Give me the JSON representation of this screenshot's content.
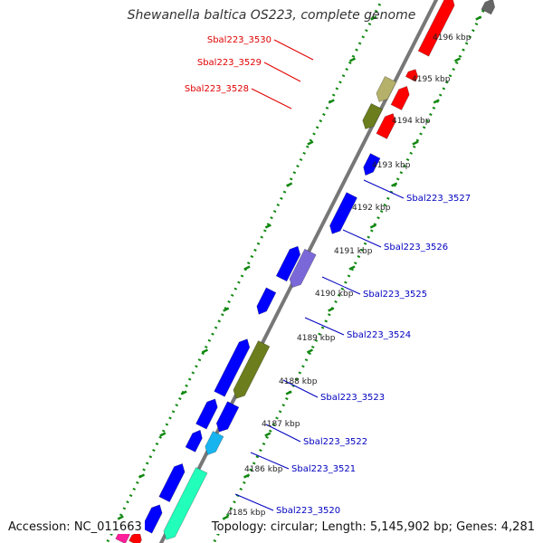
{
  "title": "Shewanella baltica OS223, complete genome",
  "footer": {
    "accession": "Accession: NC_011663",
    "topology": "Topology: circular; Length: 5,145,902 bp; Genes: 4,281"
  },
  "colors": {
    "forward_label": "#e00000",
    "reverse_label": "#0000c0",
    "backbone": "#777777",
    "tick_dots": "#118811",
    "red": "#ff0000",
    "blue": "#0000ff",
    "olive": "#6b7d1d",
    "khaki": "#b5b06a",
    "slate": "#7b68d8",
    "cyan": "#18b4ef",
    "aqua": "#22ffbb",
    "magenta": "#ff1f9a",
    "grey": "#666666"
  },
  "scale": [
    {
      "label": "4196 kbp"
    },
    {
      "label": "4195 kbp"
    },
    {
      "label": "4194 kbp"
    },
    {
      "label": "4193 kbp"
    },
    {
      "label": "4192 kbp"
    },
    {
      "label": "4191 kbp"
    },
    {
      "label": "4190 kbp"
    },
    {
      "label": "4189 kbp"
    },
    {
      "label": "4188 kbp"
    },
    {
      "label": "4187 kbp"
    },
    {
      "label": "4186 kbp"
    },
    {
      "label": "4185 kbp"
    }
  ],
  "gene_labels": [
    {
      "text": "Sbal223_3530",
      "strand": "forward"
    },
    {
      "text": "Sbal223_3529",
      "strand": "forward"
    },
    {
      "text": "Sbal223_3528",
      "strand": "forward"
    },
    {
      "text": "Sbal223_3527",
      "strand": "reverse"
    },
    {
      "text": "Sbal223_3526",
      "strand": "reverse"
    },
    {
      "text": "Sbal223_3525",
      "strand": "reverse"
    },
    {
      "text": "Sbal223_3524",
      "strand": "reverse"
    },
    {
      "text": "Sbal223_3523",
      "strand": "reverse"
    },
    {
      "text": "Sbal223_3522",
      "strand": "reverse"
    },
    {
      "text": "Sbal223_3521",
      "strand": "reverse"
    },
    {
      "text": "Sbal223_3520",
      "strand": "reverse"
    }
  ]
}
